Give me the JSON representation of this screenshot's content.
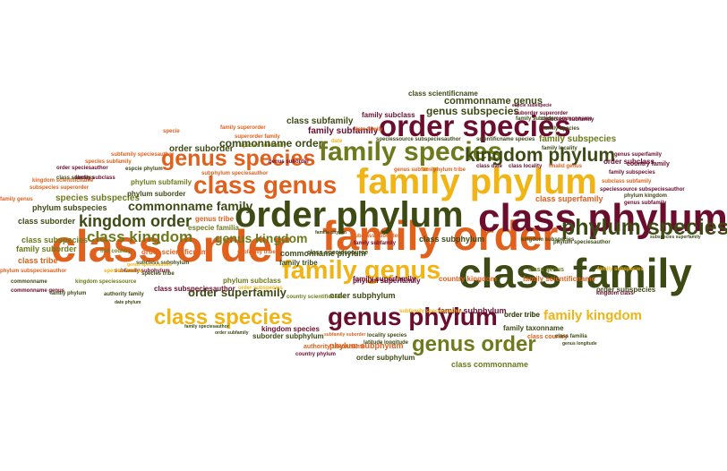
{
  "palette": {
    "dark_green": "#3d4a14",
    "olive": "#6e7a1c",
    "maroon": "#6b0d2c",
    "orange": "#e0601c",
    "yellow": "#f0b414",
    "red": "#c41e1e"
  },
  "words": [
    "class scientificname",
    "commonname genus",
    "espcie subespecie",
    "class subfamily",
    "family subclass",
    "genus subspecies",
    "suborder superorder",
    "subclass subfamily",
    "family species",
    "class commonname",
    "order species",
    "family suborder",
    "family superorder",
    "family subfamily",
    "date family",
    "superorder family",
    "species subfamily",
    "date",
    "family subspecies",
    "specie family",
    "commonname order",
    "specie",
    "speciessource subspeciesauthor",
    "scientificname species",
    "family species",
    "kingdom phylum",
    "order suborder",
    "genus species",
    "family phylum",
    "class genus",
    "class phylum",
    "order phylum",
    "phylum species",
    "family order",
    "class order",
    "class family",
    "family genus",
    "genus phylum",
    "genus order",
    "class species",
    "kingdom order",
    "class kingdom",
    "commonname family",
    "species subspecies",
    "subspecies superorder",
    "family suborder",
    "class tribe",
    "phylum subspeciesauthor",
    "class suborder",
    "phylum subspecies",
    "class subspecies",
    "kingdom scientificname",
    "phylum subfamily",
    "phylum suborder",
    "family superfamily",
    "family scientificname",
    "family subphylum",
    "genus kingdom",
    "order subphylum",
    "class commonname",
    "family taxonname",
    "order tribe",
    "family kingdom",
    "class country",
    "class familia",
    "authority taxonname",
    "country phylum",
    "phylum subphylum",
    "suborder subphylum",
    "order superfamily",
    "kingdom species",
    "phylum subclass",
    "family tribe",
    "commonname phylum",
    "genus tribe",
    "especie familia",
    "order scientificname",
    "class subphylum",
    "kingdom subspecies",
    "phylum superfamily",
    "order subclass",
    "country family",
    "phylum scientificname",
    "class superfamily",
    "subspecies superfamily",
    "family genus",
    "order subspecies",
    "genus superfamily",
    "genus subfamily",
    "fish country",
    "phylum tribe",
    "class date",
    "country kingdom",
    "genus suborder",
    "subfamily tribe",
    "phylum subclass",
    "class subspeciesauthor",
    "subclass subphylum",
    "subfamily subphylum",
    "species tribe",
    "class speciessource",
    "family subclass",
    "commonname genus",
    "subclass suborder",
    "family phylum",
    "familia phylum",
    "family subfamily",
    "subfamily speciesauthor",
    "species subfamily",
    "espcie phylum",
    "class subclass",
    "order speciesauthor",
    "kingdom speciessource",
    "subphylum speciesauthor",
    "commonname",
    "locality species",
    "class locality",
    "family locality",
    "finalid genus",
    "phylum kingdom",
    "subfamily suborder",
    "latitude longitude",
    "family subspecies",
    "subclass subfamily",
    "speciessource subspeciesauthor",
    "family speciesauthor",
    "phylum speciesauthor",
    "order subfamily",
    "genus subfamily",
    "country scientificname",
    "family subspecies",
    "kingdom class",
    "genus longitude",
    "class genus",
    "order subspecies",
    "subfamily speciesauthor",
    "authority family",
    "date phylum",
    "genus speciesauthor",
    "species familia",
    "kingdom locality",
    "country order"
  ]
}
